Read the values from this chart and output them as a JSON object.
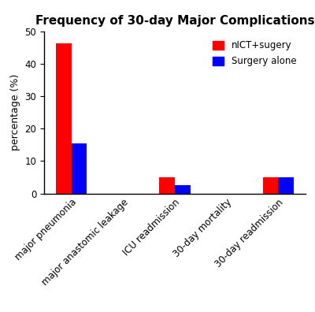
{
  "title": "Frequency of 30-day Major Complications",
  "categories": [
    "major pneumonia",
    "major anastomic leakage",
    "ICU readmission",
    "30-day mortality",
    "30-day readmission"
  ],
  "nICT_values": [
    46.2,
    0,
    5.1,
    0,
    5.1
  ],
  "surgery_values": [
    15.4,
    0,
    2.6,
    0,
    5.1
  ],
  "nICT_color": "#FF0000",
  "surgery_color": "#0000FF",
  "ylabel": "percentage (%)",
  "ylim": [
    0,
    50
  ],
  "yticks": [
    0,
    10,
    20,
    30,
    40,
    50
  ],
  "legend_labels": [
    "nICT+sugery",
    "Surgery alone"
  ],
  "bar_width": 0.3,
  "title_fontsize": 11,
  "label_fontsize": 9,
  "tick_fontsize": 8.5,
  "legend_fontsize": 8.5
}
